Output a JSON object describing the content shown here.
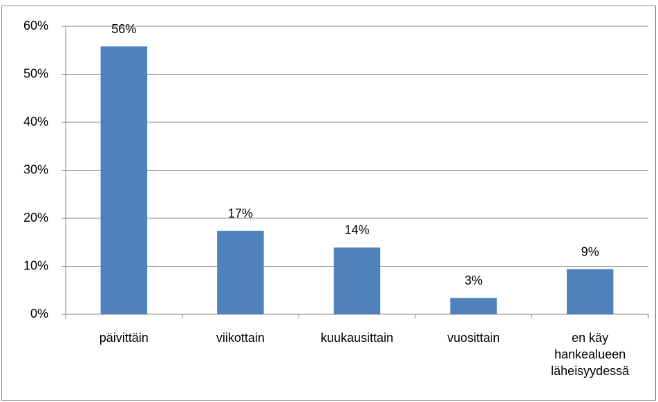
{
  "chart_data": {
    "type": "bar",
    "categories": [
      "päivittäin",
      "viikottain",
      "kuukausittain",
      "vuosittain",
      "en käy hankealueen läheisyydessä"
    ],
    "values": [
      55.8,
      17.4,
      13.9,
      3.4,
      9.4
    ],
    "value_labels": [
      "56%",
      "17%",
      "14%",
      "3%",
      "9%"
    ],
    "color": "#4f81bd",
    "ylim": [
      0,
      60
    ],
    "yticks": [
      {
        "value": 0,
        "label": "0%"
      },
      {
        "value": 10,
        "label": "10%"
      },
      {
        "value": 20,
        "label": "20%"
      },
      {
        "value": 30,
        "label": "30%"
      },
      {
        "value": 40,
        "label": "40%"
      },
      {
        "value": 50,
        "label": "50%"
      },
      {
        "value": 60,
        "label": "60%"
      }
    ],
    "grid": true
  }
}
